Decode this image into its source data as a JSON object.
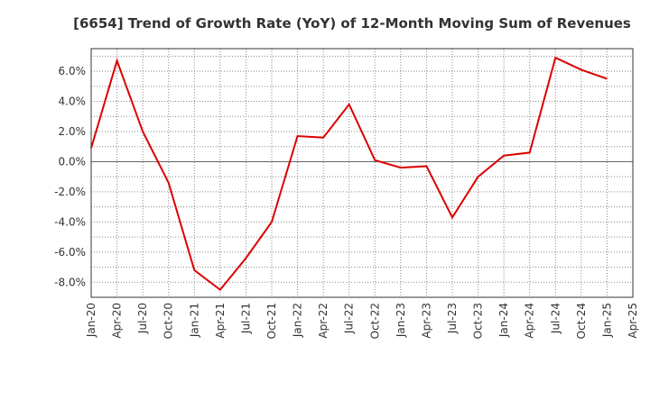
{
  "chart_data": {
    "type": "line",
    "title": "[6654]  Trend of Growth Rate (YoY) of 12-Month Moving Sum of Revenues",
    "xlabel": "",
    "ylabel": "",
    "x_ticks": [
      "Jan-20",
      "Apr-20",
      "Jul-20",
      "Oct-20",
      "Jan-21",
      "Apr-21",
      "Jul-21",
      "Oct-21",
      "Jan-22",
      "Apr-22",
      "Jul-22",
      "Oct-22",
      "Jan-23",
      "Apr-23",
      "Jul-23",
      "Oct-23",
      "Jan-24",
      "Apr-24",
      "Jul-24",
      "Oct-24",
      "Jan-25",
      "Apr-25"
    ],
    "y_ticks": [
      "6.0%",
      "4.0%",
      "2.0%",
      "0.0%",
      "-2.0%",
      "-4.0%",
      "-6.0%",
      "-8.0%"
    ],
    "y_tick_values": [
      6,
      4,
      2,
      0,
      -2,
      -4,
      -6,
      -8
    ],
    "ylim": [
      -9.0,
      7.5
    ],
    "grid": true,
    "legend": "none",
    "series": [
      {
        "color": "#dd0000",
        "x": [
          "Jan-20",
          "Apr-20",
          "Jul-20",
          "Oct-20",
          "Jan-21",
          "Apr-21",
          "Jul-21",
          "Oct-21",
          "Jan-22",
          "Apr-22",
          "Jul-22",
          "Oct-22",
          "Jan-23",
          "Apr-23",
          "Jul-23",
          "Oct-23",
          "Jan-24",
          "Apr-24",
          "Jul-24",
          "Oct-24",
          "Jan-25"
        ],
        "values": [
          0.9,
          6.7,
          2.0,
          -1.4,
          -7.2,
          -8.5,
          -6.4,
          -4.0,
          1.7,
          1.6,
          3.8,
          0.1,
          -0.4,
          -0.3,
          -3.7,
          -1.0,
          0.4,
          0.6,
          6.9,
          6.1,
          5.5
        ]
      }
    ]
  }
}
